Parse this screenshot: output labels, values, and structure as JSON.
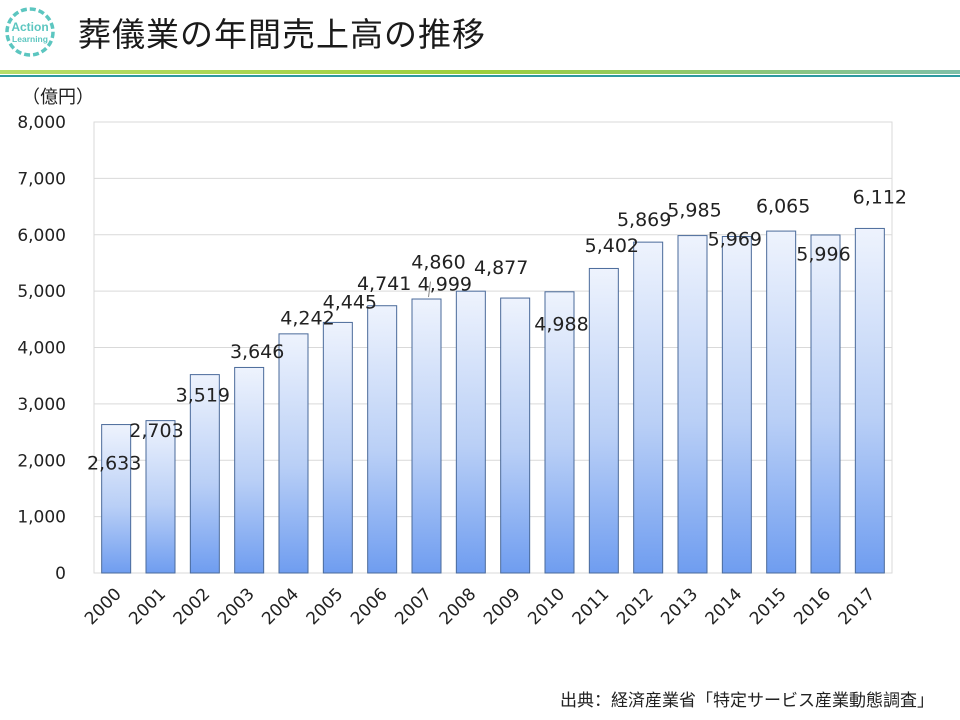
{
  "header": {
    "title": "葬儀業の年間売上高の推移",
    "logo_text_1": "Action",
    "logo_text_2": "Learning"
  },
  "colors": {
    "logo": "#5cc6c0",
    "rule_green": "#9ccf3c",
    "rule_teal": "#2e9aa0",
    "bar_top": "#eef3fd",
    "bar_bottom": "#6f9df0",
    "bar_stroke": "#4a6a9a",
    "grid": "#d9d9d9"
  },
  "chart_data": {
    "type": "bar",
    "title": "葬儀業の年間売上高の推移",
    "unit_label": "（億円）",
    "xlabel": "",
    "ylabel": "（億円）",
    "ylim": [
      0,
      8000
    ],
    "yticks": [
      0,
      1000,
      2000,
      3000,
      4000,
      5000,
      6000,
      7000,
      8000
    ],
    "ytick_labels": [
      "0",
      "1,000",
      "2,000",
      "3,000",
      "4,000",
      "5,000",
      "6,000",
      "7,000",
      "8,000"
    ],
    "categories": [
      "2000",
      "2001",
      "2002",
      "2003",
      "2004",
      "2005",
      "2006",
      "2007",
      "2008",
      "2009",
      "2010",
      "2011",
      "2012",
      "2013",
      "2014",
      "2015",
      "2016",
      "2017"
    ],
    "values": [
      2633,
      2703,
      3519,
      3646,
      4242,
      4445,
      4741,
      4860,
      4999,
      4877,
      4988,
      5402,
      5869,
      5985,
      5969,
      6065,
      5996,
      6112
    ],
    "data_labels": [
      "2,633",
      "2,703",
      "3,519",
      "3,646",
      "4,242",
      "4,445",
      "4,741",
      "4,860",
      "4,999",
      "4,877",
      "4,988",
      "5,402",
      "5,869",
      "5,985",
      "5,969",
      "6,065",
      "5,996",
      "6,112"
    ],
    "grid": true,
    "legend": "none"
  },
  "source": "出典：経済産業省「特定サービス産業動態調査」"
}
